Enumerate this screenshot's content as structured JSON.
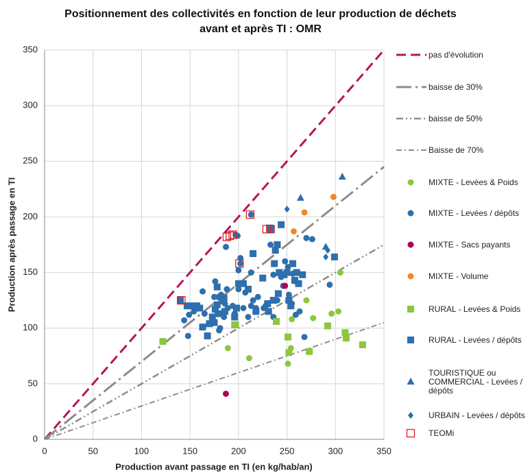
{
  "chart_data": {
    "type": "scatter",
    "title": "Positionnement des collectivités en fonction de leur production de déchets avant et après TI : OMR",
    "x_label": "Production avant passage en TI (en kg/hab/an)",
    "y_label": "Production après passage en TI",
    "xlim": [
      0,
      350
    ],
    "ylim": [
      0,
      350
    ],
    "xticks": [
      0,
      50,
      100,
      150,
      200,
      250,
      300,
      350
    ],
    "yticks": [
      0,
      50,
      100,
      150,
      200,
      250,
      300,
      350
    ],
    "grid": true,
    "series": [
      {
        "name": "pas d'évolution",
        "marker": "line",
        "dash": "14,7",
        "width": 3,
        "color": "#b5135a",
        "x": [
          0,
          350
        ],
        "values": [
          0,
          350
        ]
      },
      {
        "name": "baisse de 30%",
        "marker": "line",
        "dash": "22,6,3,6",
        "width": 3,
        "color": "#8c8c8c",
        "x": [
          0,
          350
        ],
        "values": [
          0,
          245
        ]
      },
      {
        "name": "baisse de 50%",
        "marker": "line",
        "dash": "10,4,2,4,2,4",
        "width": 2.5,
        "color": "#8c8c8c",
        "x": [
          0,
          350
        ],
        "values": [
          0,
          175
        ]
      },
      {
        "name": "Baisse de 70%",
        "marker": "line",
        "dash": "8,4,2,4",
        "width": 2,
        "color": "#8c8c8c",
        "x": [
          0,
          350
        ],
        "values": [
          0,
          105
        ]
      },
      {
        "name": "MIXTE - Levées & Poids",
        "marker": "circle",
        "color": "#8dc63f",
        "x": [
          305,
          270,
          296,
          303,
          277,
          255,
          189,
          211,
          254,
          251
        ],
        "values": [
          150,
          125,
          113,
          115,
          109,
          108,
          82,
          73,
          82,
          68
        ]
      },
      {
        "name": "MIXTE - Levées / dépôts",
        "marker": "circle",
        "color": "#2e6fad",
        "x": [
          213,
          197,
          187,
          199,
          202,
          202,
          200,
          213,
          204,
          200,
          207,
          188,
          182,
          176,
          163,
          165,
          154,
          149,
          148,
          144,
          182,
          185,
          180,
          181,
          183,
          179,
          189,
          194,
          198,
          205,
          210,
          215,
          220,
          228,
          236,
          240,
          246,
          248,
          251,
          256,
          259,
          252,
          255,
          259,
          263,
          268,
          270,
          276,
          294,
          233,
          236,
          244,
          226,
          218,
          213,
          186,
          175,
          196
        ],
        "values": [
          202,
          184,
          173,
          183,
          163,
          158,
          152,
          150,
          140,
          135,
          132,
          135,
          130,
          142,
          133,
          113,
          115,
          112,
          93,
          107,
          113,
          110,
          98,
          100,
          124,
          128,
          118,
          120,
          118,
          118,
          110,
          125,
          128,
          120,
          110,
          125,
          138,
          160,
          155,
          149,
          142,
          130,
          122,
          112,
          115,
          92,
          181,
          180,
          139,
          175,
          148,
          146,
          118,
          118,
          120,
          122,
          128,
          113
        ]
      },
      {
        "name": "MIXTE - Sacs payants",
        "marker": "circle",
        "color": "#b0005a",
        "x": [
          187,
          248
        ],
        "values": [
          41,
          138
        ]
      },
      {
        "name": "MIXTE - Volume",
        "marker": "circle",
        "color": "#f08a24",
        "x": [
          298,
          268,
          257
        ],
        "values": [
          218,
          204,
          187
        ]
      },
      {
        "name": "RURAL - Levées & Poids",
        "marker": "square",
        "color": "#8dc63f",
        "x": [
          122,
          196,
          239,
          251,
          252,
          273,
          292,
          310,
          311,
          328,
          197
        ],
        "values": [
          88,
          103,
          106,
          92,
          78,
          79,
          102,
          96,
          91,
          85,
          103
        ]
      },
      {
        "name": "RURAL - Levées / dépôts",
        "marker": "square",
        "color": "#2e6fad",
        "x": [
          140,
          147,
          152,
          157,
          160,
          163,
          170,
          173,
          176,
          179,
          175,
          178,
          185,
          178,
          168,
          186,
          198,
          200,
          205,
          210,
          215,
          218,
          225,
          230,
          232,
          236,
          237,
          238,
          240,
          241,
          242,
          244,
          247,
          250,
          252,
          254,
          256,
          258,
          260,
          262,
          266,
          299,
          233,
          196,
          231
        ],
        "values": [
          125,
          120,
          120,
          120,
          118,
          101,
          104,
          110,
          117,
          113,
          105,
          121,
          127,
          137,
          93,
          115,
          118,
          140,
          140,
          135,
          167,
          115,
          145,
          122,
          190,
          125,
          158,
          170,
          175,
          131,
          150,
          193,
          148,
          150,
          125,
          120,
          158,
          143,
          150,
          140,
          148,
          164,
          189,
          110,
          115
        ]
      },
      {
        "name": "TOURISTIQUE ou COMMERCIAL - Levées / dépôts",
        "marker": "triangle",
        "color": "#2e6fad",
        "x": [
          307,
          264,
          290
        ],
        "values": [
          236,
          217,
          173
        ]
      },
      {
        "name": "URBAIN - Levées / dépôts",
        "marker": "diamond",
        "color": "#2e6fad",
        "x": [
          250,
          290,
          292
        ],
        "values": [
          207,
          164,
          170
        ]
      },
      {
        "name": "TEOMi",
        "marker": "hollow-square",
        "color": "#e31e24",
        "x": [
          141,
          212,
          229,
          233,
          201,
          188,
          191,
          194
        ],
        "values": [
          125,
          202,
          189,
          189,
          158,
          182,
          183,
          184
        ]
      }
    ]
  }
}
